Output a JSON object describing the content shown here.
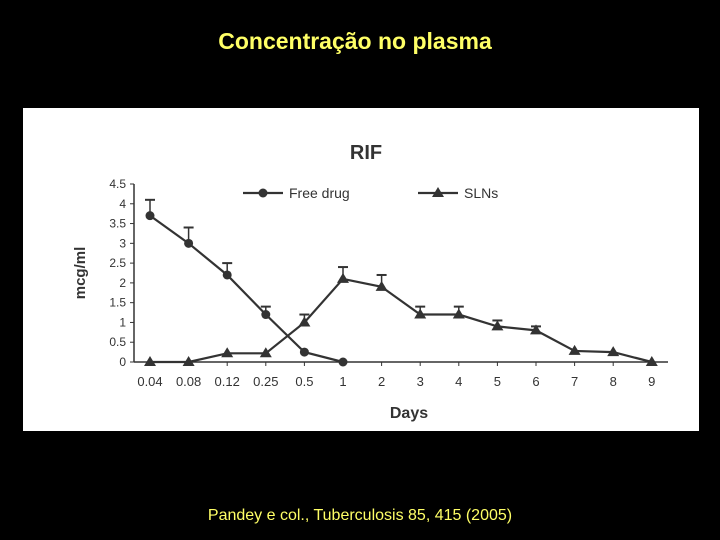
{
  "slide": {
    "title": "Concentração no plasma",
    "citation": "Pandey e col., Tuberculosis 85, 415 (2005)"
  },
  "colors": {
    "background": "#000000",
    "title_text": "#ffff66",
    "panel": "#ffffff",
    "series_line": "#333333"
  },
  "chart_data": {
    "type": "line",
    "title": "RIF",
    "xlabel": "Days",
    "ylabel": "mcg/ml",
    "ylim": [
      0,
      4.5
    ],
    "yticks": [
      "0",
      "0.5",
      "1",
      "1.5",
      "2",
      "2.5",
      "3",
      "3.5",
      "4",
      "4.5"
    ],
    "categories": [
      "0.04",
      "0.08",
      "0.12",
      "0.25",
      "0.5",
      "1",
      "2",
      "3",
      "4",
      "5",
      "6",
      "7",
      "8",
      "9"
    ],
    "legend_position": "top",
    "grid": false,
    "series": [
      {
        "name": "Free drug",
        "marker": "circle",
        "values": [
          3.7,
          3.0,
          2.2,
          1.2,
          0.25,
          0.0,
          null,
          null,
          null,
          null,
          null,
          null,
          null,
          null
        ],
        "error": [
          0.4,
          0.4,
          0.3,
          0.2,
          null,
          null,
          null,
          null,
          null,
          null,
          null,
          null,
          null,
          null
        ]
      },
      {
        "name": "SLNs",
        "marker": "triangle",
        "values": [
          0.0,
          0.0,
          0.22,
          0.22,
          1.0,
          2.1,
          1.9,
          1.2,
          1.2,
          0.9,
          0.8,
          0.28,
          0.25,
          0.0
        ],
        "error": [
          null,
          null,
          null,
          null,
          0.2,
          0.3,
          0.3,
          0.2,
          0.2,
          0.15,
          0.1,
          null,
          null,
          null
        ]
      }
    ]
  }
}
